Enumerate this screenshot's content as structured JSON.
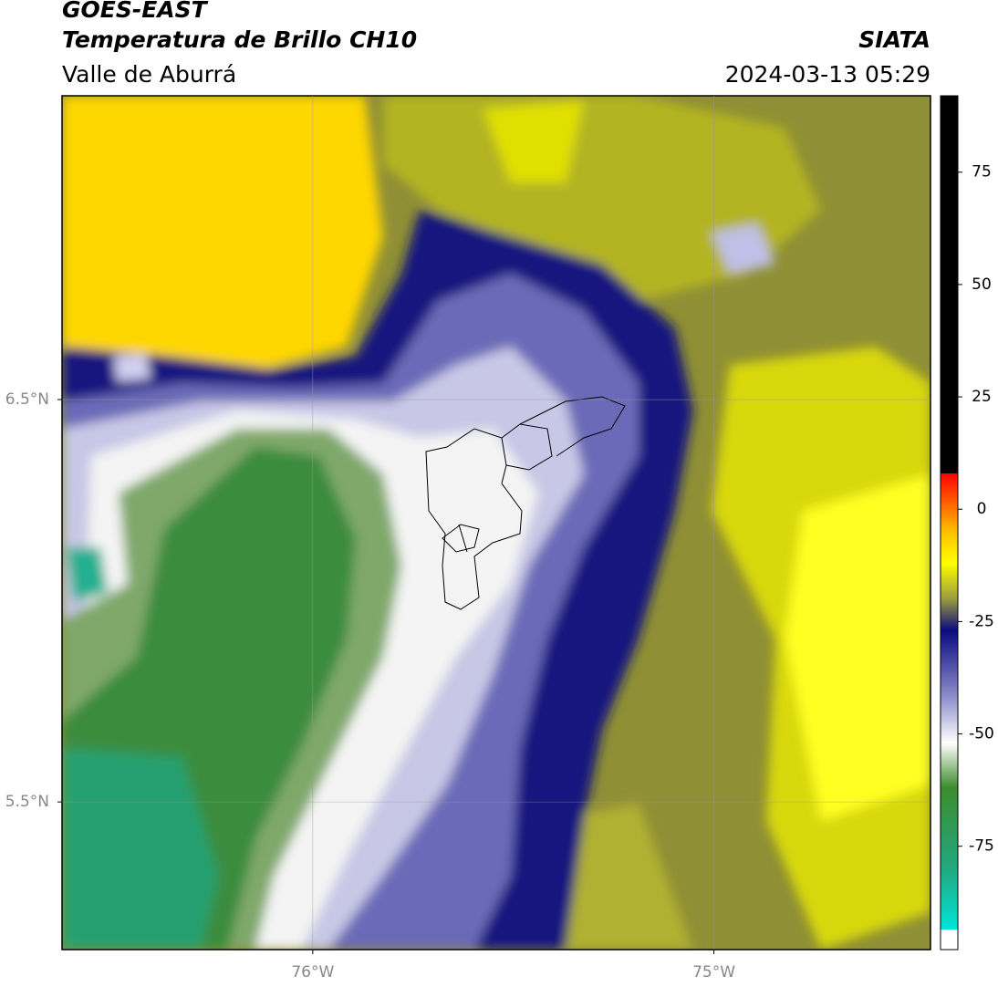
{
  "header": {
    "title": "GOES-EAST",
    "subtitle": "Temperatura de Brillo CH10",
    "region": "Valle de Aburrá",
    "source": "SIATA",
    "datetime": "2024-03-13 05:29"
  },
  "map": {
    "xlim": [
      -76.625,
      -74.46
    ],
    "ylim": [
      5.133,
      7.255
    ],
    "xticks": [
      {
        "value": -76,
        "label": "76°W"
      },
      {
        "value": -75,
        "label": "75°W"
      }
    ],
    "yticks": [
      {
        "value": 6.5,
        "label": "6.5°N"
      },
      {
        "value": 5.5,
        "label": "5.5°N"
      }
    ],
    "grid": true
  },
  "colorbar": {
    "lim": [
      -98,
      92
    ],
    "ticks": [
      75,
      50,
      25,
      0,
      -25,
      -50,
      -75
    ],
    "colormap": [
      {
        "value": -98,
        "color": "#ffffff"
      },
      {
        "value": -93.5,
        "color": "#ffffff"
      },
      {
        "value": -93.5,
        "color": "#00e5d8"
      },
      {
        "value": -80,
        "color": "#22a880"
      },
      {
        "value": -62,
        "color": "#3c8c2c"
      },
      {
        "value": -52,
        "color": "#ffffff"
      },
      {
        "value": -42,
        "color": "#9090cc"
      },
      {
        "value": -27,
        "color": "#0a0a80"
      },
      {
        "value": -20,
        "color": "#9a9a40"
      },
      {
        "value": -12,
        "color": "#ffff00"
      },
      {
        "value": -5,
        "color": "#ffc000"
      },
      {
        "value": 8,
        "color": "#ff0000"
      },
      {
        "value": 8,
        "color": "#000000"
      },
      {
        "value": 92,
        "color": "#000000"
      }
    ]
  }
}
